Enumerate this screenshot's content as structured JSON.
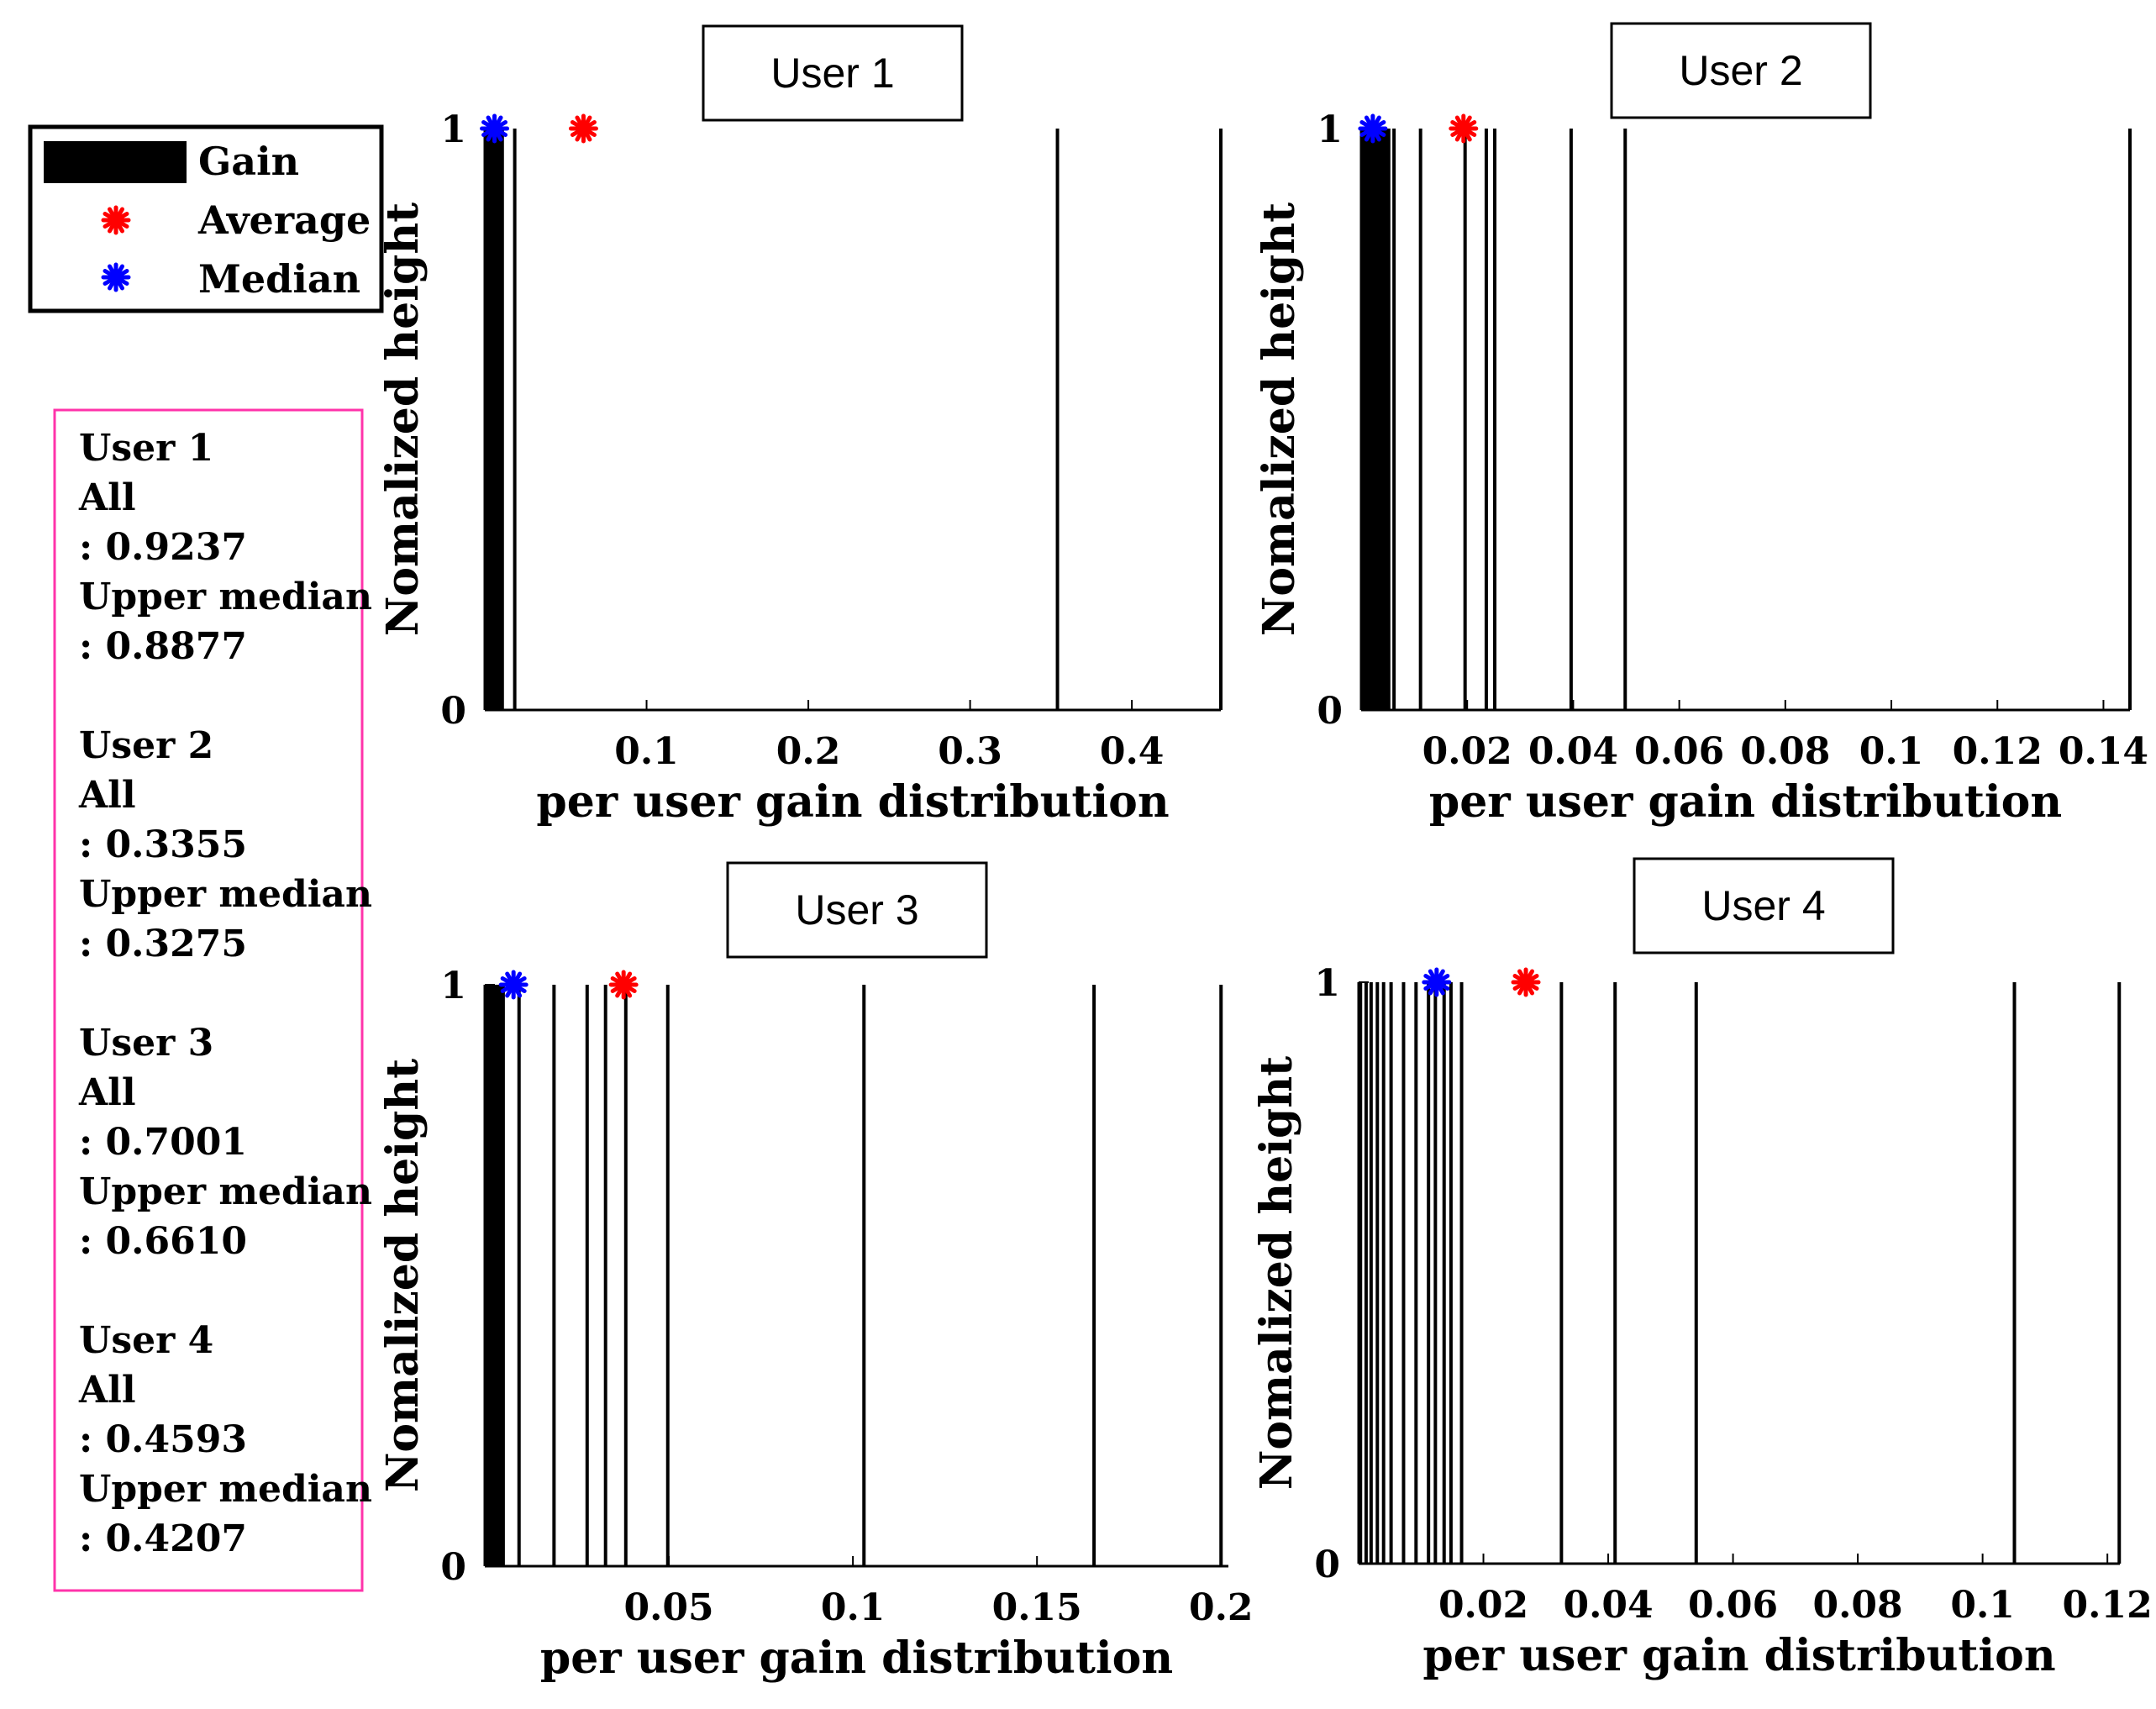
{
  "chart_data": [
    {
      "type": "bar",
      "title": "User 1",
      "xlabel": "per user gain distribution",
      "ylabel": "Nomalized height",
      "xlim": [
        0,
        0.455
      ],
      "ylim": [
        0,
        1
      ],
      "xticks": [
        0.1,
        0.2,
        0.3,
        0.4
      ],
      "xtick_labels": [
        "0.1",
        "0.2",
        "0.3",
        "0.4"
      ],
      "yticks": [
        0,
        1
      ],
      "ytick_labels": [
        "0",
        "1"
      ],
      "gains": [
        0.0005,
        0.0012,
        0.002,
        0.0028,
        0.0036,
        0.0044,
        0.0052,
        0.006,
        0.0068,
        0.0076,
        0.0084,
        0.0092,
        0.01,
        0.0108,
        0.0185,
        0.354,
        0.455
      ],
      "heights": [
        1,
        1,
        1,
        1,
        1,
        1,
        1,
        1,
        1,
        1,
        1,
        1,
        1,
        1,
        1,
        1,
        1
      ],
      "average": 0.061,
      "median": 0.006
    },
    {
      "type": "bar",
      "title": "User 2",
      "xlabel": "per user gain distribution",
      "ylabel": "Nomalized height",
      "xlim": [
        0,
        0.145
      ],
      "ylim": [
        0,
        1
      ],
      "xticks": [
        0.02,
        0.04,
        0.06,
        0.08,
        0.1,
        0.12,
        0.14
      ],
      "xtick_labels": [
        "0.02",
        "0.04",
        "0.06",
        "0.08",
        "0.1",
        "0.12",
        "0.14"
      ],
      "yticks": [
        0,
        1
      ],
      "ytick_labels": [
        "0",
        "1"
      ],
      "gains": [
        0.0002,
        0.0006,
        0.001,
        0.0014,
        0.0018,
        0.0022,
        0.0026,
        0.003,
        0.0034,
        0.0038,
        0.0042,
        0.0046,
        0.0052,
        0.0062,
        0.0112,
        0.0196,
        0.0236,
        0.0252,
        0.0396,
        0.0498,
        0.145
      ],
      "heights": [
        1,
        1,
        1,
        1,
        1,
        1,
        1,
        1,
        1,
        1,
        1,
        1,
        1,
        1,
        1,
        1,
        1,
        1,
        1,
        1,
        1
      ],
      "average": 0.0193,
      "median": 0.0022
    },
    {
      "type": "bar",
      "title": "User 3",
      "xlabel": "per user gain distribution",
      "ylabel": "Nomalized height",
      "xlim": [
        0,
        0.202
      ],
      "ylim": [
        0,
        1
      ],
      "xticks": [
        0.05,
        0.1,
        0.15,
        0.2
      ],
      "xtick_labels": [
        "0.05",
        "0.1",
        "0.15",
        "0.2"
      ],
      "yticks": [
        0,
        1
      ],
      "ytick_labels": [
        "0",
        "1"
      ],
      "gains": [
        0.0003,
        0.0009,
        0.0015,
        0.0021,
        0.0027,
        0.0033,
        0.0039,
        0.0045,
        0.005,
        0.0093,
        0.0188,
        0.0278,
        0.0328,
        0.0383,
        0.0497,
        0.103,
        0.1655,
        0.2
      ],
      "heights": [
        1,
        1,
        1,
        1,
        1,
        1,
        1,
        1,
        1,
        1,
        1,
        1,
        1,
        1,
        1,
        1,
        1,
        1
      ],
      "average": 0.0377,
      "median": 0.0078
    },
    {
      "type": "bar",
      "title": "User 4",
      "xlabel": "per user gain distribution",
      "ylabel": "Nomalized height",
      "xlim": [
        0,
        0.122
      ],
      "ylim": [
        0,
        1
      ],
      "xticks": [
        0.02,
        0.04,
        0.06,
        0.08,
        0.1,
        0.12
      ],
      "xtick_labels": [
        "0.02",
        "0.04",
        "0.06",
        "0.08",
        "0.1",
        "0.12"
      ],
      "yticks": [
        0,
        1
      ],
      "ytick_labels": [
        "0",
        "1"
      ],
      "gains": [
        0.0003,
        0.0012,
        0.002,
        0.003,
        0.004,
        0.0052,
        0.0072,
        0.0092,
        0.0112,
        0.0123,
        0.0137,
        0.0148,
        0.0165,
        0.0325,
        0.0411,
        0.0541,
        0.1051,
        0.1219
      ],
      "heights": [
        1,
        1,
        1,
        1,
        1,
        1,
        1,
        1,
        1,
        1,
        1,
        1,
        1,
        1,
        1,
        1,
        1,
        1
      ],
      "average": 0.0268,
      "median": 0.0125
    }
  ],
  "legend": {
    "items": [
      {
        "label": "Gain",
        "marker": "bar",
        "color": "#000000"
      },
      {
        "label": "Average",
        "marker": "asterisk",
        "color": "#ff0000"
      },
      {
        "label": "Median",
        "marker": "asterisk",
        "color": "#0000ff"
      }
    ]
  },
  "stats_box": {
    "border_color": "#ff33aa",
    "users": [
      {
        "name": "User 1",
        "all_label": "All",
        "all_value": ": 0.9237",
        "upper_label": "Upper median",
        "upper_value": ": 0.8877"
      },
      {
        "name": "User 2",
        "all_label": "All",
        "all_value": ": 0.3355",
        "upper_label": "Upper median",
        "upper_value": ": 0.3275"
      },
      {
        "name": "User 3",
        "all_label": "All",
        "all_value": ": 0.7001",
        "upper_label": "Upper median",
        "upper_value": ": 0.6610"
      },
      {
        "name": "User 4",
        "all_label": "All",
        "all_value": ": 0.4593",
        "upper_label": "Upper median",
        "upper_value": ": 0.4207"
      }
    ]
  },
  "colors": {
    "average": "#ff0000",
    "median": "#0000ff",
    "bar": "#000000"
  }
}
